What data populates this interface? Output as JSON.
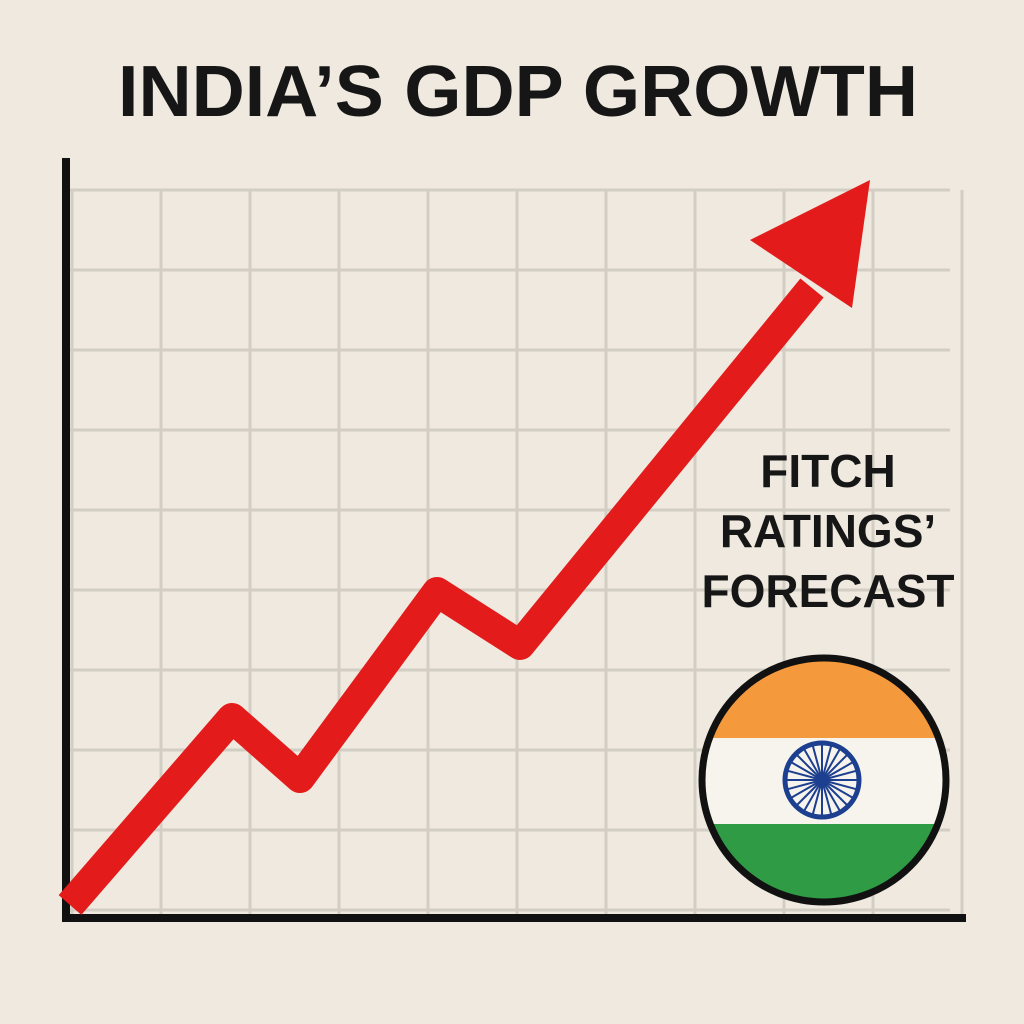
{
  "title": "INDIA’S GDP GROWTH",
  "annotation": {
    "lines": [
      "FITCH",
      "RATINGS’",
      "FORECAST"
    ]
  }
}
